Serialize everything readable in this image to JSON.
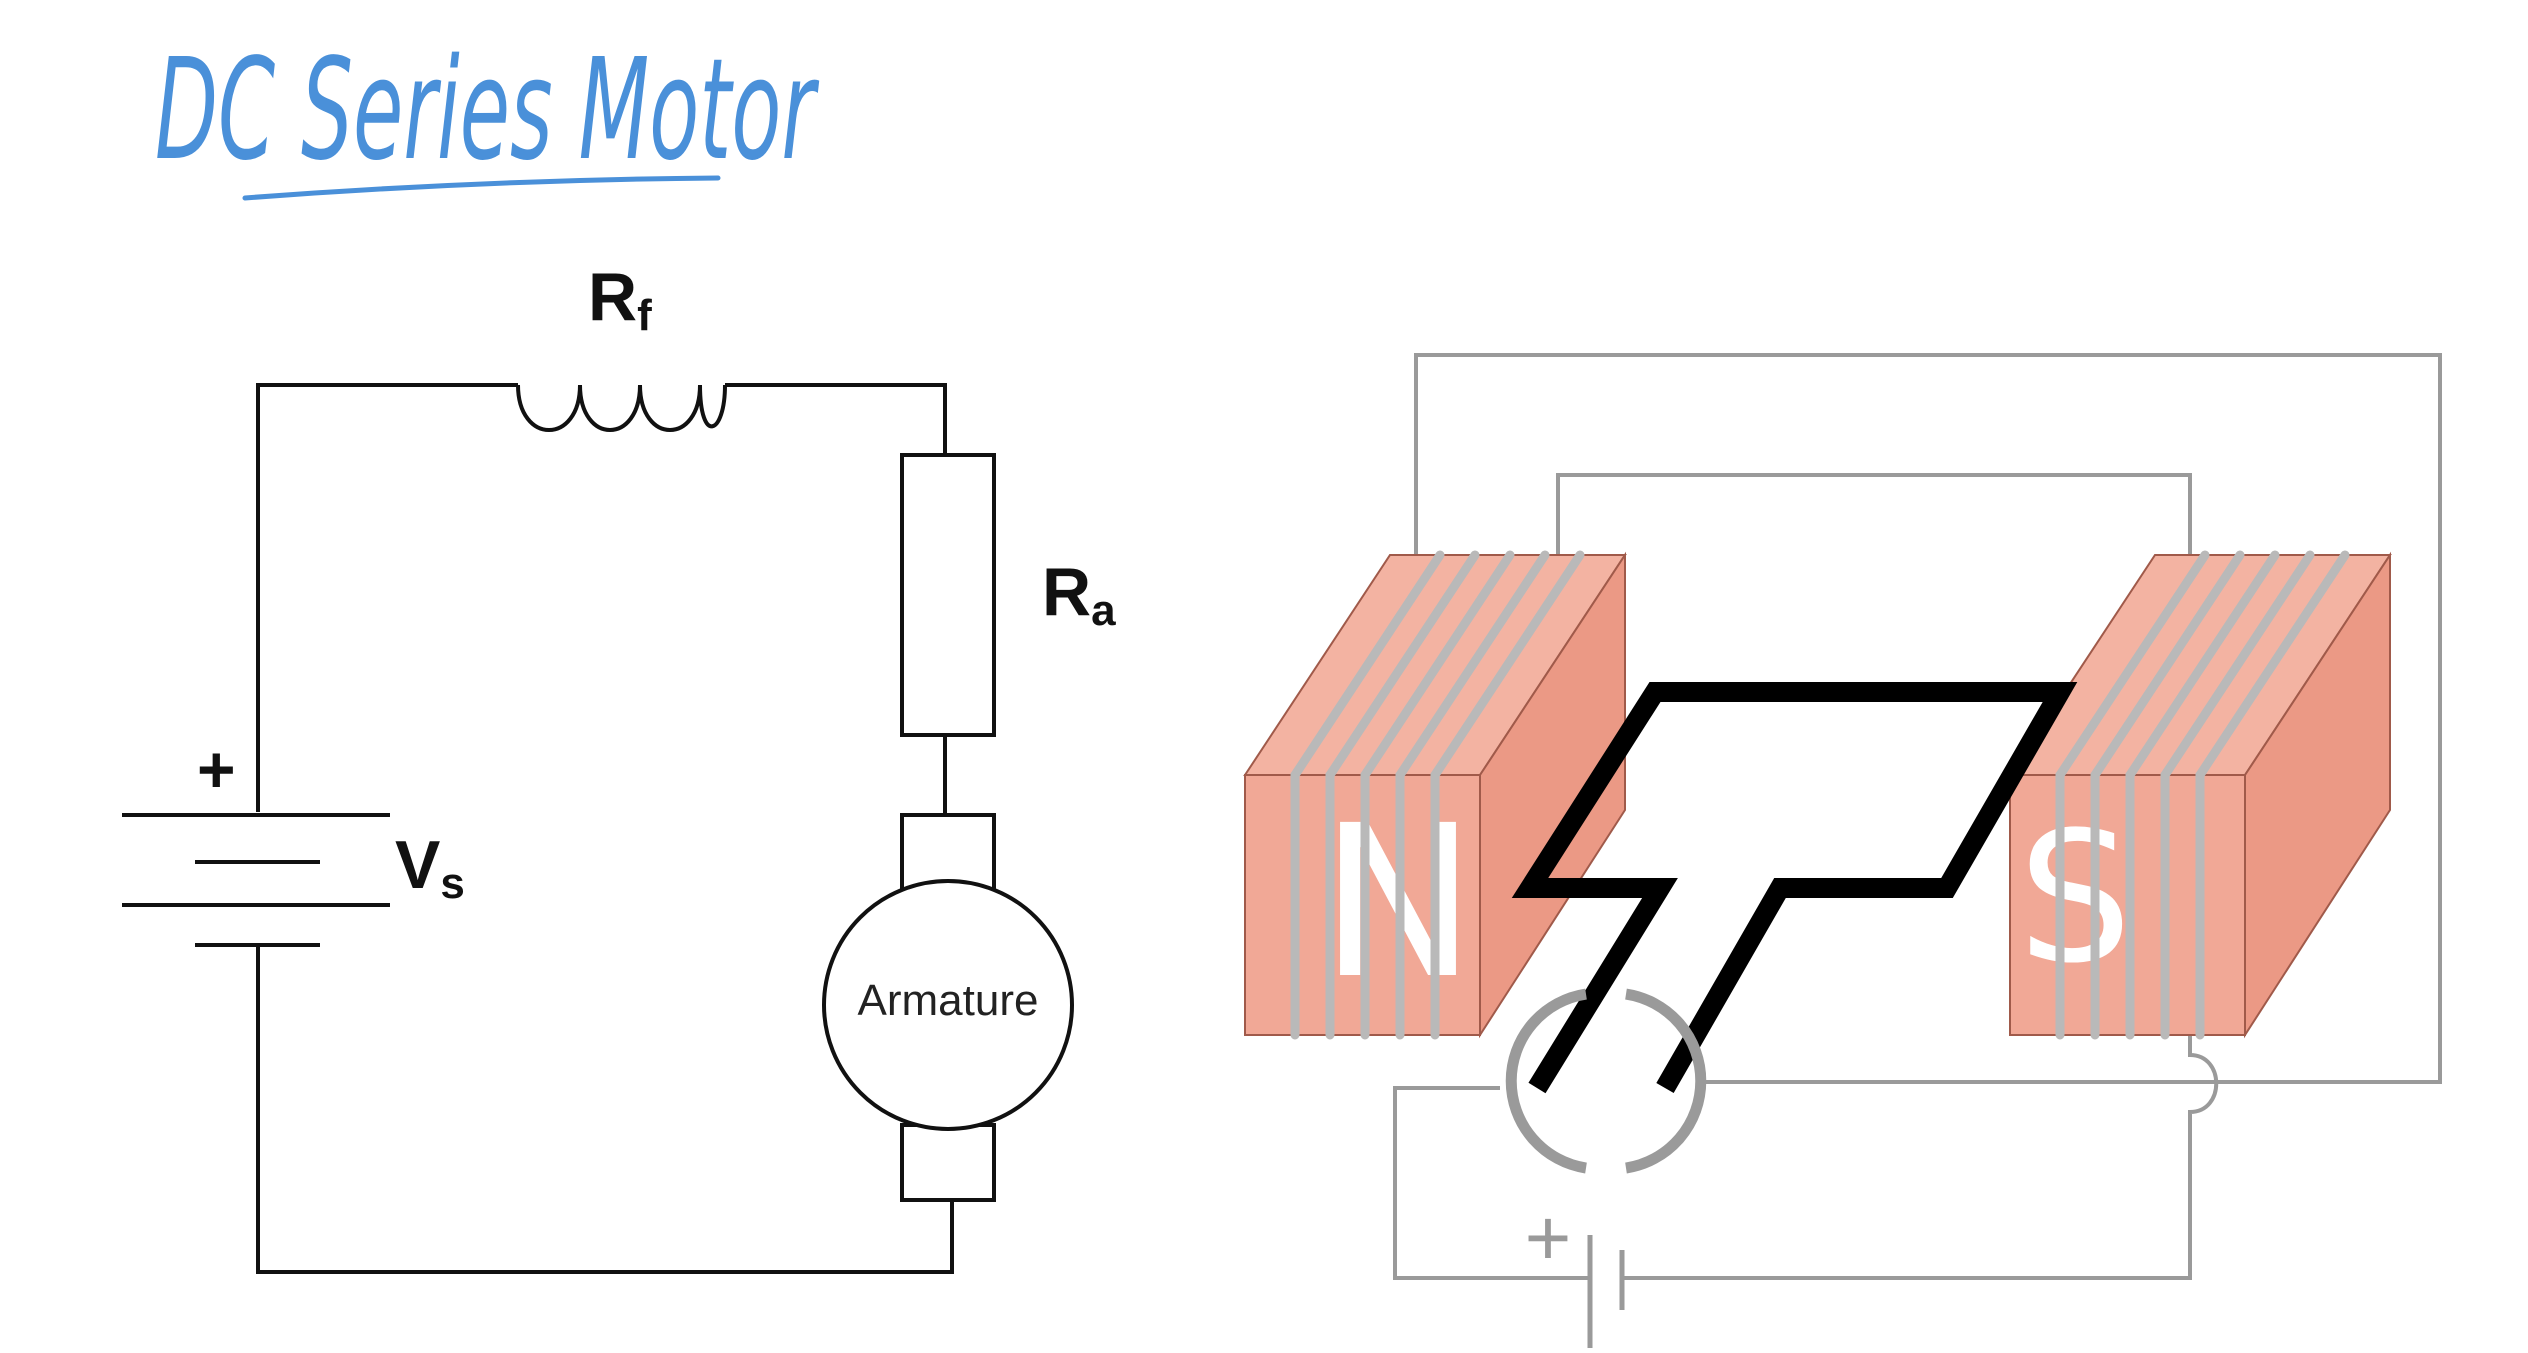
{
  "title": "DC Series Motor",
  "circuit": {
    "field_resistance": {
      "symbol": "R",
      "subscript": "f"
    },
    "armature_resistance": {
      "symbol": "R",
      "subscript": "a"
    },
    "supply_voltage": {
      "symbol": "V",
      "subscript": "s"
    },
    "battery_positive": "+",
    "motor_label": "Armature"
  },
  "motor_model": {
    "north_pole": "N",
    "south_pole": "S",
    "battery_positive": "+"
  },
  "colors": {
    "title_ink": "#4a90d9",
    "pole_face": "#f1a896",
    "pole_side": "#ec9a86",
    "pole_edge": "#a05a4a",
    "winding": "#b9b9b9",
    "wire_gray": "#9a9a9a",
    "circuit_line": "#111111"
  }
}
